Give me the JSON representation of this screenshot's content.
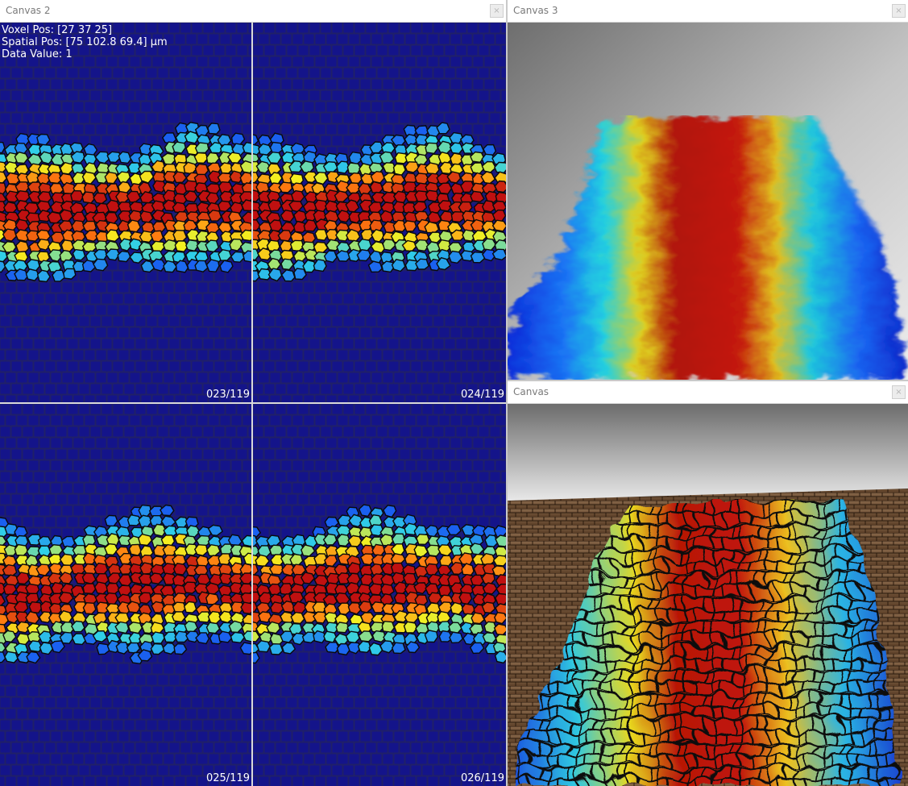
{
  "windows": {
    "canvas2": {
      "title": "Canvas 2",
      "close_label": "×",
      "info": {
        "voxel_pos": "Voxel Pos:   [27 37 25]",
        "spatial_pos": "Spatial Pos: [75 102.8 69.4] µm",
        "data_value": "Data Value: 1"
      },
      "slices": [
        {
          "label": "023/119"
        },
        {
          "label": "024/119"
        },
        {
          "label": "025/119"
        },
        {
          "label": "026/119"
        }
      ]
    },
    "canvas3": {
      "title": "Canvas 3",
      "close_label": "×"
    },
    "canvas": {
      "title": "Canvas",
      "close_label": "×"
    }
  },
  "colors": {
    "background_blue": "#14148a",
    "cell_border": "#0a0a0a",
    "jet_red": "#c01010",
    "jet_orange": "#ff7a10",
    "jet_yellow": "#f4f020",
    "jet_cyan": "#30d0e8",
    "jet_blue": "#1a60f0",
    "floor_brown": "#7a5638"
  }
}
